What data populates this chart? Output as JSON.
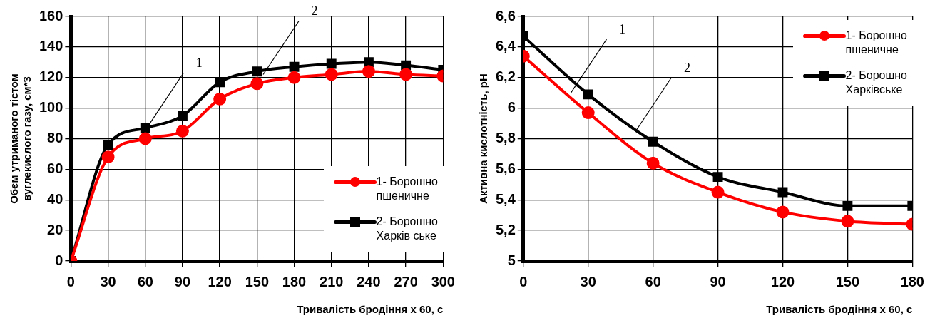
{
  "chart_data": [
    {
      "type": "line",
      "xlabel": "Тривалість бродіння х 60, с",
      "ylabel": "Обєм утриманого тістом\nвуглекислого газу, см*3",
      "x": [
        0,
        30,
        60,
        90,
        120,
        150,
        180,
        210,
        240,
        270,
        300
      ],
      "xlim": [
        0,
        300
      ],
      "xticks": [
        0,
        30,
        60,
        90,
        120,
        150,
        180,
        210,
        240,
        270,
        300
      ],
      "ylim": [
        0,
        160
      ],
      "yticks": [
        0,
        20,
        40,
        60,
        80,
        100,
        120,
        140,
        160
      ],
      "grid": true,
      "legend": "bottom right",
      "line_style": "solid",
      "series": [
        {
          "name": "1- Борошно\nпшеничне",
          "color": "#ff0000",
          "marker": "circle",
          "values": [
            0,
            68,
            80,
            85,
            106,
            116,
            120,
            122,
            124,
            122,
            121
          ]
        },
        {
          "name": "2- Борошно\nХарків ське",
          "color": "#000000",
          "marker": "square",
          "values": [
            0,
            76,
            87,
            95,
            117,
            124,
            127,
            129,
            130,
            128,
            125
          ]
        }
      ],
      "annotations": [
        {
          "text": "1",
          "x": 62,
          "y": 88
        },
        {
          "text": "2",
          "x": 155,
          "y": 122
        }
      ]
    },
    {
      "type": "line",
      "xlabel": "Тривалість бродіння х 60, с",
      "ylabel": "Активна кислотність, pH",
      "x": [
        0,
        30,
        60,
        90,
        120,
        150,
        180
      ],
      "xlim": [
        0,
        180
      ],
      "xticks": [
        0,
        30,
        60,
        90,
        120,
        150,
        180
      ],
      "ylim": [
        5,
        6.6
      ],
      "yticks": [
        5,
        {
          "value": 5.2,
          "label": "5,2"
        },
        {
          "value": 5.4,
          "label": "5,4"
        },
        {
          "value": 5.6,
          "label": "5,6"
        },
        {
          "value": 5.8,
          "label": "5,8"
        },
        6,
        {
          "value": 6.2,
          "label": "6,2"
        },
        {
          "value": 6.4,
          "label": "6,4"
        },
        {
          "value": 6.6,
          "label": "6,6"
        }
      ],
      "grid": true,
      "legend": "top right",
      "line_style": "solid",
      "series": [
        {
          "name": "1- Борошно\nпшеничне",
          "color": "#ff0000",
          "marker": "circle",
          "values": [
            6.34,
            5.97,
            5.64,
            5.45,
            5.32,
            5.26,
            5.24
          ]
        },
        {
          "name": "2- Борошно\nХарківське",
          "color": "#000000",
          "marker": "square",
          "values": [
            6.47,
            6.09,
            5.78,
            5.55,
            5.45,
            5.36,
            5.36
          ]
        }
      ],
      "annotations": [
        {
          "text": "1",
          "x": 22,
          "y": 6.1
        },
        {
          "text": "2",
          "x": 52,
          "y": 5.85
        }
      ]
    }
  ]
}
